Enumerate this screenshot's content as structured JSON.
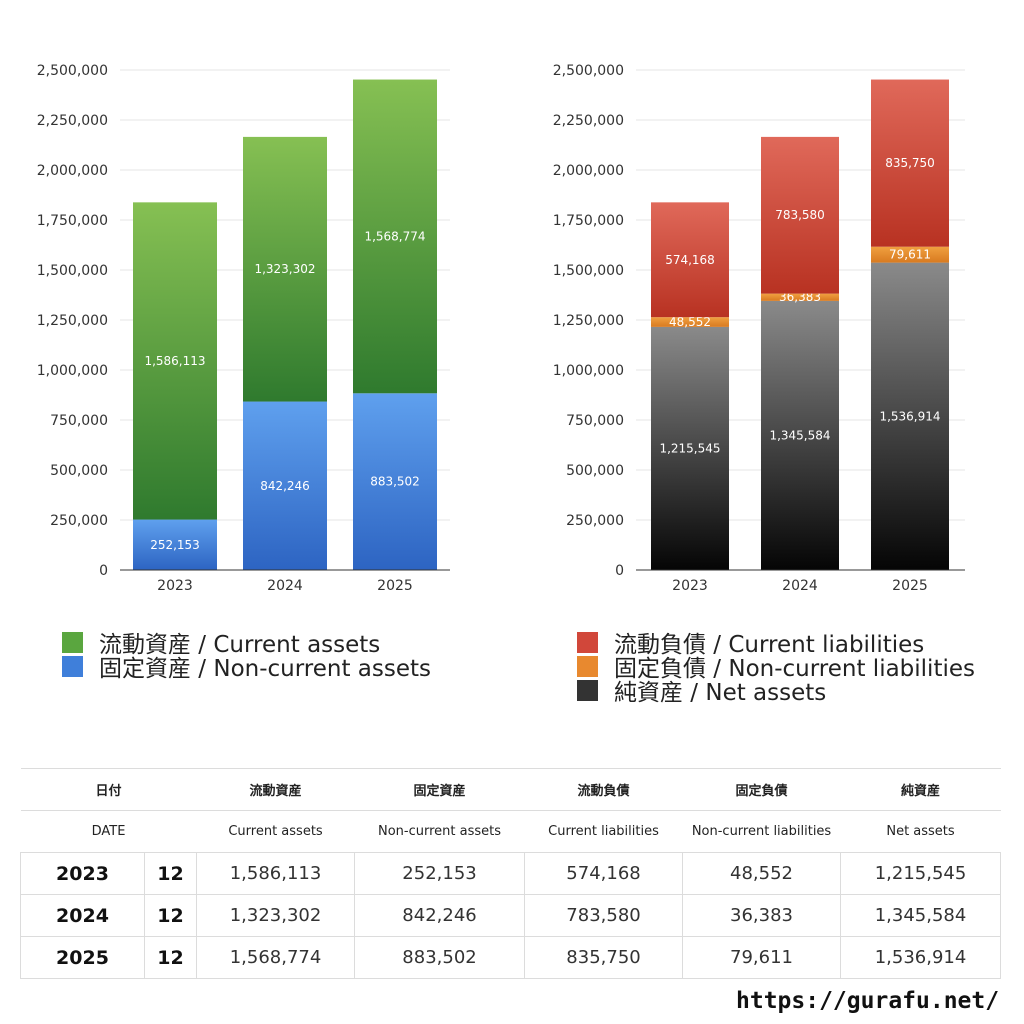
{
  "chart_data": [
    {
      "type": "bar",
      "stacked": true,
      "categories": [
        "2023",
        "2024",
        "2025"
      ],
      "series": [
        {
          "name": "固定資産 / Non-current assets",
          "values": [
            252153,
            842246,
            883502
          ],
          "color_top": "#5fa0ee",
          "color_bottom": "#2d64c2"
        },
        {
          "name": "流動資産 / Current assets",
          "values": [
            1586113,
            1323302,
            1568774
          ],
          "color_top": "#86c053",
          "color_bottom": "#2f7a2e"
        }
      ],
      "data_labels": [
        [
          "252,153",
          "842,246",
          "883,502"
        ],
        [
          "1,586,113",
          "1,323,302",
          "1,568,774"
        ]
      ],
      "yticks": [
        "0",
        "250,000",
        "500,000",
        "750,000",
        "1,000,000",
        "1,250,000",
        "1,500,000",
        "1,750,000",
        "2,000,000",
        "2,250,000",
        "2,500,000"
      ],
      "ylim": [
        0,
        2500000
      ],
      "grid": true,
      "legend_position": "bottom"
    },
    {
      "type": "bar",
      "stacked": true,
      "categories": [
        "2023",
        "2024",
        "2025"
      ],
      "series": [
        {
          "name": "純資産 / Net assets",
          "values": [
            1215545,
            1345584,
            1536914
          ],
          "color_top": "#8a8a8a",
          "color_bottom": "#050505"
        },
        {
          "name": "固定負債 / Non-current liabilities",
          "values": [
            48552,
            36383,
            79611
          ],
          "color_top": "#f0a040",
          "color_bottom": "#d87a20"
        },
        {
          "name": "流動負債 / Current liabilities",
          "values": [
            574168,
            783580,
            835750
          ],
          "color_top": "#e0695a",
          "color_bottom": "#b83222"
        }
      ],
      "data_labels": [
        [
          "1,215,545",
          "1,345,584",
          "1,536,914"
        ],
        [
          "48,552",
          "36,383",
          "79,611"
        ],
        [
          "574,168",
          "783,580",
          "835,750"
        ]
      ],
      "yticks": [
        "0",
        "250,000",
        "500,000",
        "750,000",
        "1,000,000",
        "1,250,000",
        "1,500,000",
        "1,750,000",
        "2,000,000",
        "2,250,000",
        "2,500,000"
      ],
      "ylim": [
        0,
        2500000
      ],
      "grid": true,
      "legend_position": "bottom"
    }
  ],
  "legend_left": [
    {
      "label": "流動資産 / Current assets",
      "color": "#5aa63f"
    },
    {
      "label": "固定資産 / Non-current assets",
      "color": "#3f7fda"
    }
  ],
  "legend_right": [
    {
      "label": "流動負債 / Current liabilities",
      "color": "#d1473a"
    },
    {
      "label": "固定負債 / Non-current liabilities",
      "color": "#e8892f"
    },
    {
      "label": "純資産 / Net assets",
      "color": "#333333"
    }
  ],
  "table": {
    "header_jp": [
      "日付",
      "流動資産",
      "固定資産",
      "流動負債",
      "固定負債",
      "純資産"
    ],
    "header_en": [
      "DATE",
      "Current assets",
      "Non-current assets",
      "Current liabilities",
      "Non-current liabilities",
      "Net assets"
    ],
    "rows": [
      {
        "year": "2023",
        "month": "12",
        "values": [
          "1,586,113",
          "252,153",
          "574,168",
          "48,552",
          "1,215,545"
        ]
      },
      {
        "year": "2024",
        "month": "12",
        "values": [
          "1,323,302",
          "842,246",
          "783,580",
          "36,383",
          "1,345,584"
        ]
      },
      {
        "year": "2025",
        "month": "12",
        "values": [
          "1,568,774",
          "883,502",
          "835,750",
          "79,611",
          "1,536,914"
        ]
      }
    ]
  },
  "site_url": "https://gurafu.net/"
}
